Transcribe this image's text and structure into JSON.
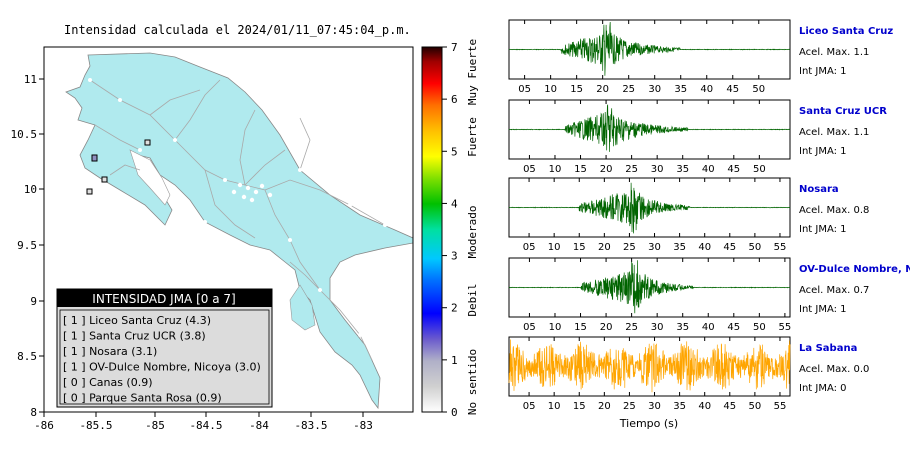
{
  "map": {
    "title": "Intensidad calculada el 2024/01/11_07:45:04_p.m.",
    "lon_ticks": [
      "-86",
      "-85.5",
      "-85",
      "-84.5",
      "-84",
      "-83.5",
      "-83"
    ],
    "lat_ticks": [
      "11",
      "10.5",
      "10",
      "9.5",
      "9",
      "8.5",
      "8"
    ],
    "land_color": "#b0eaee",
    "legend": {
      "header": "INTENSIDAD JMA [0 a 7]",
      "items": [
        "[ 1 ]  Liceo Santa Cruz (4.3)",
        "[ 1 ]  Santa Cruz UCR (3.8)",
        "[ 1 ]  Nosara (3.1)",
        "[ 1 ]  OV-Dulce Nombre, Nicoya (3.0)",
        "[ 0 ]  Canas (0.9)",
        "[ 0 ]  Parque Santa Rosa (0.9)"
      ]
    }
  },
  "colorbar": {
    "ticks": [
      "0",
      "1",
      "2",
      "3",
      "4",
      "5",
      "6",
      "7"
    ],
    "labels": [
      "No sentido",
      "Debil",
      "Moderado",
      "Fuerte",
      "Muy Fuerte"
    ]
  },
  "chart_data": {
    "type": "line",
    "xlabel": "Tiempo (s)",
    "color_strong": "#006400",
    "color_weak": "#ffa500",
    "stations": [
      {
        "name": "Liceo Santa Cruz",
        "accel": "Acel. Max. 1.1",
        "jma": "Int JMA: 1",
        "ticks": [
          "05",
          "10",
          "15",
          "20",
          "25",
          "30",
          "35",
          "40",
          "45",
          "50"
        ],
        "x_range": [
          2,
          56
        ],
        "burst_start": 12,
        "burst_peak": 20,
        "burst_end": 35,
        "peak_amp": 1.1
      },
      {
        "name": "Santa Cruz UCR",
        "accel": "Acel. Max. 1.1",
        "jma": "Int JMA: 1",
        "ticks": [
          "05",
          "10",
          "15",
          "20",
          "25",
          "30",
          "35",
          "40",
          "45",
          "50"
        ],
        "x_range": [
          1,
          56
        ],
        "burst_start": 12,
        "burst_peak": 20,
        "burst_end": 36,
        "peak_amp": 1.1
      },
      {
        "name": "Nosara",
        "accel": "Acel. Max. 0.8",
        "jma": "Int JMA: 1",
        "ticks": [
          "05",
          "10",
          "15",
          "20",
          "25",
          "30",
          "35",
          "40",
          "45",
          "50",
          "55"
        ],
        "x_range": [
          1,
          57
        ],
        "burst_start": 15,
        "burst_peak": 25,
        "burst_end": 37,
        "peak_amp": 0.8
      },
      {
        "name": "OV-Dulce Nombre, Nicoya",
        "accel": "Acel. Max. 0.7",
        "jma": "Int JMA: 1",
        "ticks": [
          "05",
          "10",
          "15",
          "20",
          "25",
          "30",
          "35",
          "40",
          "45",
          "50",
          "55"
        ],
        "x_range": [
          1,
          56
        ],
        "burst_start": 15,
        "burst_peak": 25,
        "burst_end": 37,
        "peak_amp": 0.7
      },
      {
        "name": "La Sabana",
        "accel": "Acel. Max. 0.0",
        "jma": "Int JMA: 0",
        "ticks": [
          "05",
          "10",
          "15",
          "20",
          "25",
          "30",
          "35",
          "40",
          "45",
          "50",
          "55"
        ],
        "x_range": [
          1,
          57
        ],
        "noise": true,
        "peak_amp": 0.0
      }
    ]
  }
}
